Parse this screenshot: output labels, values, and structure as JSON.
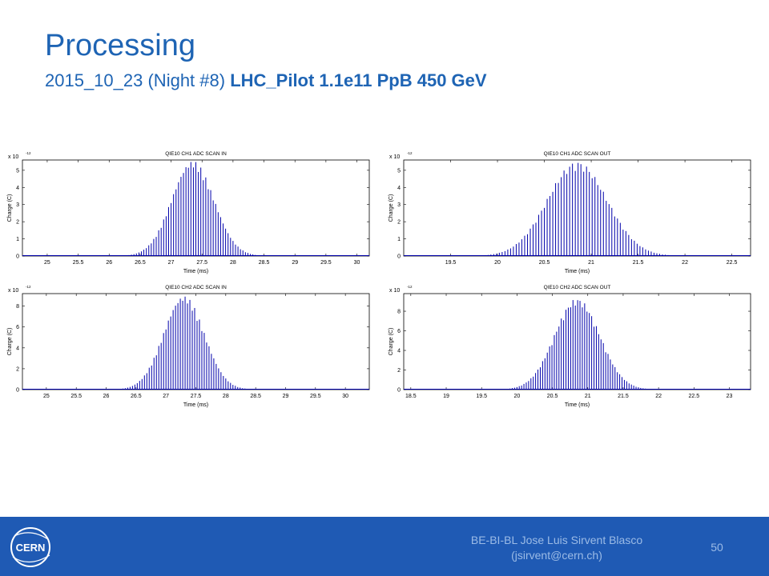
{
  "slide": {
    "title": "Processing",
    "subtitle_date": "2015_10_23",
    "subtitle_night": "(Night #8)",
    "subtitle_beam": "LHC_Pilot 1.1e11 PpB  450 GeV"
  },
  "footer": {
    "logo_text": "CERN",
    "author_line1": "BE-BI-BL Jose Luis Sirvent Blasco",
    "author_line2": "(jsirvent@cern.ch)",
    "page_number": "50"
  },
  "colors": {
    "accent": "#1e64b4",
    "footer_bg": "#1f5ab4",
    "footer_text": "#9bbbe6",
    "bars": "#0000aa"
  },
  "chart_data": [
    {
      "type": "bar",
      "title": "QIE10 CH1 ADC SCAN IN",
      "xlabel": "Time (ms)",
      "ylabel": "Charge (C)",
      "y_exponent": "x 10",
      "y_exponent_power": "-12",
      "xlim": [
        24.6,
        30.2
      ],
      "ylim": [
        0,
        5.6
      ],
      "x_ticks": [
        "25",
        "25.5",
        "26",
        "26.5",
        "27",
        "27.5",
        "28",
        "28.5",
        "29",
        "29.5",
        "30"
      ],
      "y_ticks": [
        "0",
        "1",
        "2",
        "3",
        "4",
        "5"
      ],
      "peak_x": 27.35,
      "peak_y": 5.55,
      "sigma": 0.34,
      "x_start": 24.6,
      "x_end": 30.2,
      "bar_spacing": 0.04
    },
    {
      "type": "bar",
      "title": "QIE10 CH1 ADC SCAN OUT",
      "xlabel": "Time (ms)",
      "ylabel": "Charge (C)",
      "y_exponent": "x 10",
      "y_exponent_power": "-12",
      "xlim": [
        19.0,
        22.7
      ],
      "ylim": [
        0,
        5.6
      ],
      "x_ticks": [
        "19.5",
        "20",
        "20.5",
        "21",
        "21.5",
        "22",
        "22.5"
      ],
      "y_ticks": [
        "0",
        "1",
        "2",
        "3",
        "4",
        "5"
      ],
      "peak_x": 20.85,
      "peak_y": 5.5,
      "sigma": 0.32,
      "x_start": 19.0,
      "x_end": 22.7,
      "bar_spacing": 0.03
    },
    {
      "type": "bar",
      "title": "QIE10 CH2 ADC SCAN IN",
      "xlabel": "Time (ms)",
      "ylabel": "Charge (C)",
      "y_exponent": "x 10",
      "y_exponent_power": "-12",
      "xlim": [
        24.6,
        30.4
      ],
      "ylim": [
        0,
        9.2
      ],
      "x_ticks": [
        "25",
        "25.5",
        "26",
        "26.5",
        "27",
        "27.5",
        "28",
        "28.5",
        "29",
        "29.5",
        "30"
      ],
      "y_ticks": [
        "0",
        "2",
        "4",
        "6",
        "8"
      ],
      "peak_x": 27.3,
      "peak_y": 9.0,
      "sigma": 0.34,
      "x_start": 24.6,
      "x_end": 30.4,
      "bar_spacing": 0.04
    },
    {
      "type": "bar",
      "title": "QIE10 CH2 ADC SCAN OUT",
      "xlabel": "Time (ms)",
      "ylabel": "Charge (C)",
      "y_exponent": "x 10",
      "y_exponent_power": "-12",
      "xlim": [
        18.4,
        23.3
      ],
      "ylim": [
        0,
        9.8
      ],
      "x_ticks": [
        "18.5",
        "19",
        "19.5",
        "20",
        "20.5",
        "21",
        "21.5",
        "22",
        "22.5",
        "23"
      ],
      "y_ticks": [
        "0",
        "2",
        "4",
        "6",
        "8"
      ],
      "peak_x": 20.85,
      "peak_y": 9.3,
      "sigma": 0.32,
      "x_start": 19.9,
      "x_end": 22.1,
      "bar_spacing": 0.033
    }
  ]
}
